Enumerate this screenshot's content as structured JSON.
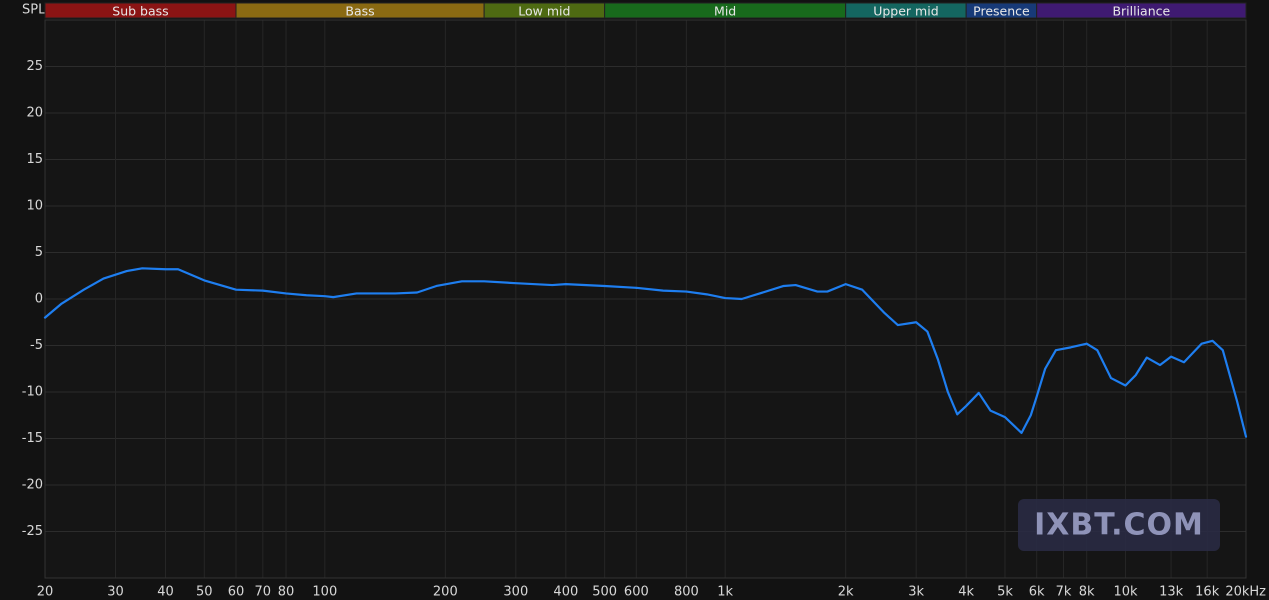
{
  "chart_data": {
    "type": "line",
    "y_label": "SPL",
    "watermark": "IXBT.COM",
    "log_x": true,
    "grid": true,
    "xlim": [
      20,
      20000
    ],
    "ylim": [
      -30,
      30
    ],
    "yticks": [
      -25,
      -20,
      -15,
      -10,
      -5,
      0,
      5,
      10,
      15,
      20,
      25
    ],
    "xticks": [
      20,
      30,
      40,
      50,
      60,
      70,
      80,
      100,
      200,
      300,
      400,
      500,
      600,
      800,
      {
        "value": 1000,
        "label": "1k"
      },
      {
        "value": 2000,
        "label": "2k"
      },
      {
        "value": 3000,
        "label": "3k"
      },
      {
        "value": 4000,
        "label": "4k"
      },
      {
        "value": 5000,
        "label": "5k"
      },
      {
        "value": 6000,
        "label": "6k"
      },
      {
        "value": 7000,
        "label": "7k"
      },
      {
        "value": 8000,
        "label": "8k"
      },
      {
        "value": 10000,
        "label": "10k"
      },
      {
        "value": 13000,
        "label": "13k"
      },
      {
        "value": 16000,
        "label": "16k"
      },
      {
        "value": 20000,
        "label": "20kHz"
      }
    ],
    "bands": [
      {
        "name": "Sub bass",
        "from": 20,
        "to": 60,
        "color": "#8b1414"
      },
      {
        "name": "Bass",
        "from": 60,
        "to": 250,
        "color": "#8a6a12"
      },
      {
        "name": "Low mid",
        "from": 250,
        "to": 500,
        "color": "#4e6a12"
      },
      {
        "name": "Mid",
        "from": 500,
        "to": 2000,
        "color": "#186a1c"
      },
      {
        "name": "Upper mid",
        "from": 2000,
        "to": 4000,
        "color": "#146660"
      },
      {
        "name": "Presence",
        "from": 4000,
        "to": 6000,
        "color": "#173a78"
      },
      {
        "name": "Brilliance",
        "from": 6000,
        "to": 20000,
        "color": "#3f1a72"
      }
    ],
    "x": [
      20,
      22,
      25,
      28,
      32,
      35,
      40,
      43,
      50,
      60,
      70,
      80,
      90,
      100,
      105,
      120,
      150,
      170,
      190,
      220,
      250,
      300,
      370,
      400,
      500,
      600,
      700,
      800,
      900,
      1000,
      1100,
      1200,
      1400,
      1500,
      1700,
      1800,
      2000,
      2200,
      2500,
      2700,
      3000,
      3200,
      3400,
      3600,
      3800,
      4000,
      4300,
      4600,
      5000,
      5500,
      5800,
      6000,
      6300,
      6700,
      7300,
      8000,
      8500,
      9200,
      10000,
      10600,
      11300,
      12200,
      13000,
      14000,
      15500,
      16500,
      17500,
      19000,
      20000
    ],
    "series": [
      {
        "name": "SPL",
        "color": "#1e7ef0",
        "values": [
          -2,
          -0.5,
          1,
          2.2,
          3,
          3.3,
          3.2,
          3.2,
          2,
          1,
          0.9,
          0.6,
          0.4,
          0.3,
          0.2,
          0.6,
          0.6,
          0.7,
          1.4,
          1.9,
          1.9,
          1.7,
          1.5,
          1.6,
          1.4,
          1.2,
          0.9,
          0.8,
          0.5,
          0.1,
          0,
          0.5,
          1.4,
          1.5,
          0.8,
          0.8,
          1.6,
          1,
          -1.5,
          -2.8,
          -2.5,
          -3.5,
          -6.5,
          -10,
          -12.4,
          -11.5,
          -10.1,
          -12,
          -12.7,
          -14.4,
          -12.5,
          -10.5,
          -7.5,
          -5.5,
          -5.2,
          -4.8,
          -5.5,
          -8.5,
          -9.3,
          -8.2,
          -6.3,
          -7.1,
          -6.2,
          -6.8,
          -4.8,
          -4.5,
          -5.5,
          -11,
          -14.8
        ]
      }
    ]
  }
}
